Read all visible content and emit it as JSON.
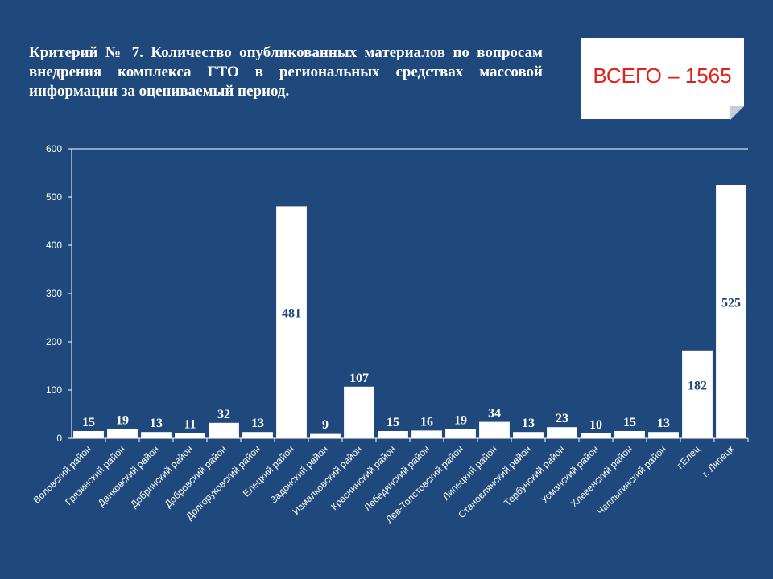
{
  "slide": {
    "title": "Критерий № 7. Количество опубликованных материалов по вопросам внедрения комплекса ГТО в региональных средствах массовой информации за оцениваемый период.",
    "total_label": "ВСЕГО – 1565"
  },
  "colors": {
    "background": "#1f497d",
    "bar": "#ffffff",
    "axis": "#ffffff",
    "label_text": "#1f497d",
    "total_text": "#e0201b"
  },
  "chart_data": {
    "type": "bar",
    "categories": [
      "Воловский район",
      "Грязинский район",
      "Данковский район",
      "Добринский район",
      "Добровский район",
      "Долгоруковский район",
      "Елецкий район",
      "Задонский район",
      "Измалковский район",
      "Краснинский район",
      "Лебедянский район",
      "Лев-Толстовский район",
      "Липецкий район",
      "Становлянский район",
      "Тербунский район",
      "Усманский район",
      "Хлевенский район",
      "Чаплыгинский район",
      "г.Елец",
      "г. Липецк"
    ],
    "values": [
      15,
      19,
      13,
      11,
      32,
      13,
      481,
      9,
      107,
      15,
      16,
      19,
      34,
      13,
      23,
      10,
      15,
      13,
      182,
      525
    ],
    "ylim": [
      0,
      600
    ],
    "yticks": [
      0,
      100,
      200,
      300,
      400,
      500,
      600
    ],
    "grid": false,
    "legend": "none"
  }
}
